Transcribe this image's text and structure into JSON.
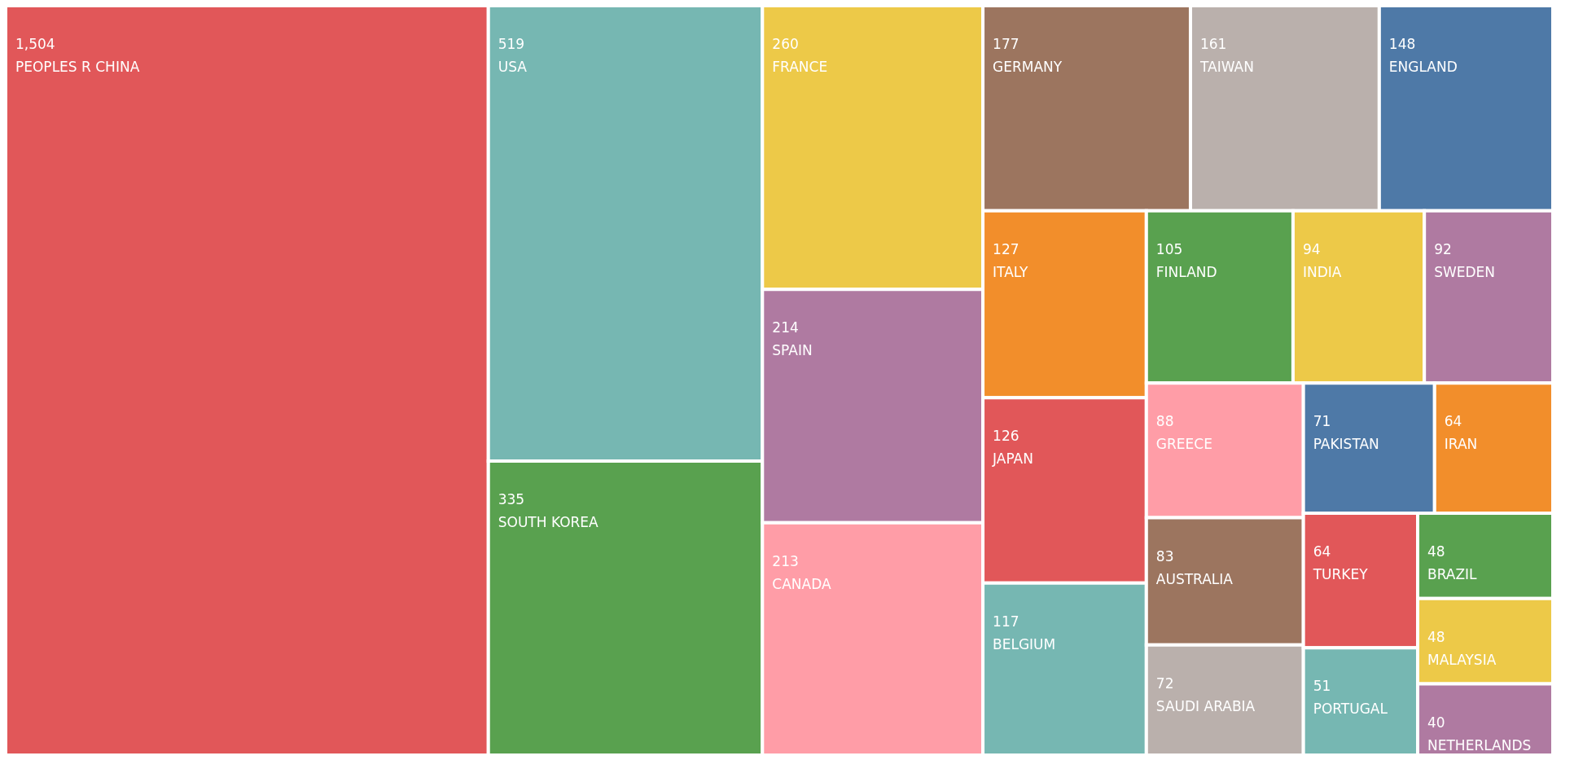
{
  "chart_data": {
    "type": "other",
    "categories": [
      "PEOPLES R CHINA",
      "USA",
      "SOUTH KOREA",
      "FRANCE",
      "SPAIN",
      "CANADA",
      "GERMANY",
      "TAIWAN",
      "ENGLAND",
      "ITALY",
      "JAPAN",
      "BELGIUM",
      "FINLAND",
      "INDIA",
      "SWEDEN",
      "GREECE",
      "AUSTRALIA",
      "SAUDI ARABIA",
      "PAKISTAN",
      "IRAN",
      "TURKEY",
      "PORTUGAL",
      "BRAZIL",
      "MALAYSIA",
      "NETHERLANDS"
    ],
    "values": [
      1504,
      519,
      335,
      260,
      214,
      213,
      177,
      161,
      148,
      127,
      126,
      117,
      105,
      94,
      92,
      88,
      83,
      72,
      71,
      64,
      64,
      51,
      48,
      48,
      40
    ],
    "colors": [
      "#e15759",
      "#76b7b2",
      "#59a14f",
      "#edc948",
      "#af7aa1",
      "#ff9da7",
      "#9c755f",
      "#bab0ac",
      "#4e79a7",
      "#f28e2b",
      "#e15759",
      "#76b7b2",
      "#59a14f",
      "#edc948",
      "#af7aa1",
      "#ff9da7",
      "#9c755f",
      "#bab0ac",
      "#4e79a7",
      "#f28e2b",
      "#e15759",
      "#76b7b2",
      "#59a14f",
      "#edc948",
      "#af7aa1"
    ],
    "value_labels": [
      "1,504",
      "519",
      "335",
      "260",
      "214",
      "213",
      "177",
      "161",
      "148",
      "127",
      "126",
      "117",
      "105",
      "94",
      "92",
      "88",
      "83",
      "72",
      "71",
      "64",
      "64",
      "51",
      "48",
      "48",
      "40"
    ]
  }
}
